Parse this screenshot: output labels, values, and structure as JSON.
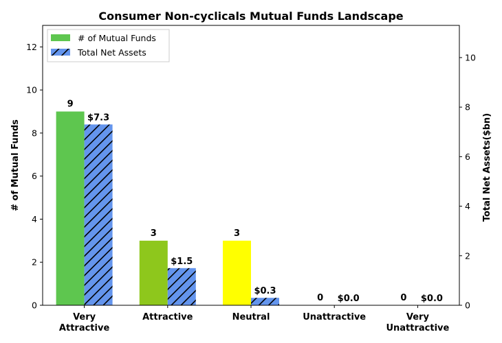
{
  "chart_data": {
    "type": "bar",
    "title": "Consumer Non-cyclicals Mutual Funds Landscape",
    "categories": [
      "Very\nAttractive",
      "Attractive",
      "Neutral",
      "Unattractive",
      "Very\nUnattractive"
    ],
    "series": [
      {
        "name": "# of Mutual Funds",
        "axis": "left",
        "values": [
          9,
          3,
          3,
          0,
          0
        ],
        "labels": [
          "9",
          "3",
          "3",
          "0",
          "0"
        ],
        "colors": [
          "#5ec64f",
          "#8ec71c",
          "#ffff00",
          "#ffff00",
          "#ffff00"
        ]
      },
      {
        "name": "Total Net Assets",
        "axis": "right",
        "values": [
          7.3,
          1.5,
          0.3,
          0.0,
          0.0
        ],
        "labels": [
          "$7.3",
          "$1.5",
          "$0.3",
          "$0.0",
          "$0.0"
        ],
        "color": "#6495ed",
        "hatch": "diagonal"
      }
    ],
    "ylabel": "# of Mutual Funds",
    "y2label": "Total Net Assets($bn)",
    "ylim": [
      0,
      13
    ],
    "y2lim": [
      0,
      11.3
    ],
    "yticks": [
      0,
      2,
      4,
      6,
      8,
      10,
      12
    ],
    "y2ticks": [
      0,
      2,
      4,
      6,
      8,
      10
    ],
    "legend_position": "top-left",
    "grid": false
  }
}
